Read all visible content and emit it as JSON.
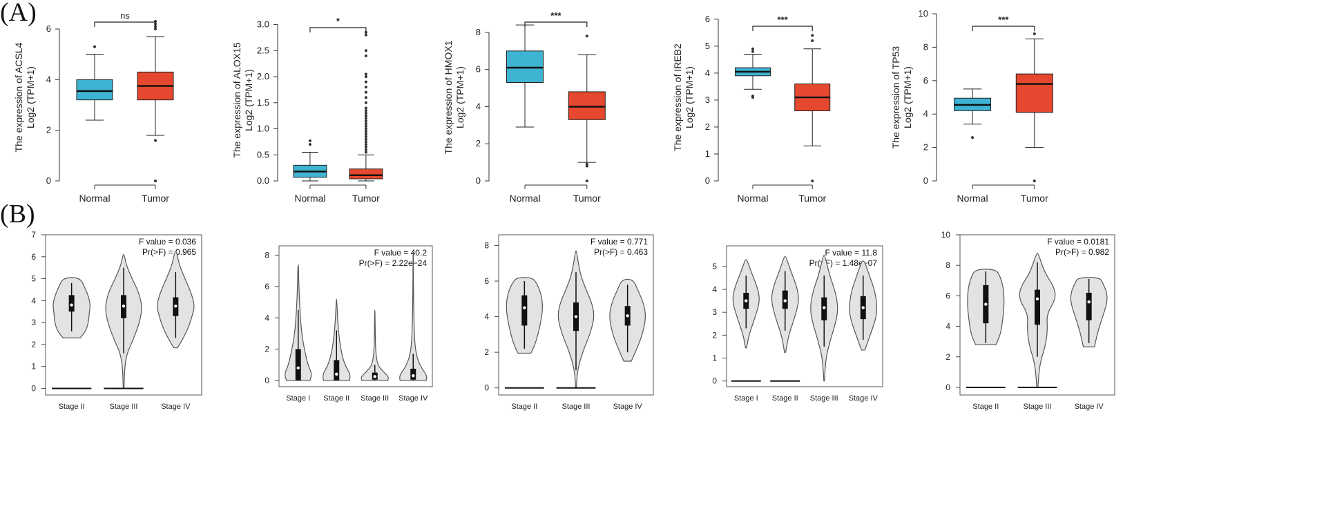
{
  "panel_labels": {
    "a": "(A)",
    "b": "(B)"
  },
  "colors": {
    "normal": "#3fb4d2",
    "tumor": "#e5482f",
    "violin": "#e3e3e3",
    "outline": "#555555",
    "bracket": "#222222"
  },
  "chart_data": [
    {
      "type": "boxplot",
      "panel": "A",
      "gene": "ACSL4",
      "ylabel_line1": "The expression of ACSL4",
      "ylabel_line2": "Log2 (TPM+1)",
      "ylim": [
        0,
        6.6
      ],
      "yticks": [
        0,
        2,
        4,
        6
      ],
      "categories": [
        "Normal",
        "Tumor"
      ],
      "boxes": [
        {
          "q1": 3.2,
          "median": 3.55,
          "q3": 4.0,
          "whisker_low": 2.4,
          "whisker_high": 5.0,
          "outliers": [
            5.3
          ]
        },
        {
          "q1": 3.2,
          "median": 3.75,
          "q3": 4.3,
          "whisker_low": 1.8,
          "whisker_high": 5.7,
          "outliers": [
            1.6,
            0.0,
            6.0,
            6.1,
            6.2,
            6.3
          ]
        }
      ],
      "significance": "ns"
    },
    {
      "type": "boxplot",
      "panel": "A",
      "gene": "ALOX15",
      "ylabel_line1": "The expression of ALOX15",
      "ylabel_line2": "Log2 (TPM+1)",
      "ylim": [
        0,
        3.1
      ],
      "yticks": [
        0.0,
        0.5,
        1.0,
        1.5,
        2.0,
        2.5,
        3.0
      ],
      "categories": [
        "Normal",
        "Tumor"
      ],
      "boxes": [
        {
          "q1": 0.07,
          "median": 0.18,
          "q3": 0.3,
          "whisker_low": 0.0,
          "whisker_high": 0.55,
          "outliers": [
            0.7,
            0.77
          ]
        },
        {
          "q1": 0.04,
          "median": 0.11,
          "q3": 0.23,
          "whisker_low": 0.0,
          "whisker_high": 0.5,
          "outliers": [
            0.55,
            0.6,
            0.65,
            0.7,
            0.75,
            0.8,
            0.85,
            0.9,
            0.95,
            1.0,
            1.05,
            1.1,
            1.15,
            1.2,
            1.25,
            1.3,
            1.35,
            1.4,
            1.5,
            1.6,
            1.7,
            1.8,
            1.9,
            2.0,
            2.05,
            2.4,
            2.5,
            2.8,
            2.85
          ]
        }
      ],
      "significance": "*"
    },
    {
      "type": "boxplot",
      "panel": "A",
      "gene": "HMOX1",
      "ylabel_line1": "The expression of HMOX1",
      "ylabel_line2": "Log2 (TPM+1)",
      "ylim": [
        0,
        9.0
      ],
      "yticks": [
        0,
        2,
        4,
        6,
        8
      ],
      "categories": [
        "Normal",
        "Tumor"
      ],
      "boxes": [
        {
          "q1": 5.3,
          "median": 6.1,
          "q3": 7.0,
          "whisker_low": 2.9,
          "whisker_high": 8.4,
          "outliers": []
        },
        {
          "q1": 3.3,
          "median": 4.0,
          "q3": 4.8,
          "whisker_low": 1.0,
          "whisker_high": 6.8,
          "outliers": [
            0.8,
            0.9,
            0.0,
            7.8
          ]
        }
      ],
      "significance": "***"
    },
    {
      "type": "boxplot",
      "panel": "A",
      "gene": "IREB2",
      "ylabel_line1": "The expression of IREB2",
      "ylabel_line2": "Log2 (TPM+1)",
      "ylim": [
        0,
        6.2
      ],
      "yticks": [
        0,
        1,
        2,
        3,
        4,
        5,
        6
      ],
      "categories": [
        "Normal",
        "Tumor"
      ],
      "boxes": [
        {
          "q1": 3.9,
          "median": 4.05,
          "q3": 4.2,
          "whisker_low": 3.4,
          "whisker_high": 4.7,
          "outliers": [
            3.1,
            3.15,
            4.8,
            4.9
          ]
        },
        {
          "q1": 2.6,
          "median": 3.1,
          "q3": 3.6,
          "whisker_low": 1.3,
          "whisker_high": 4.9,
          "outliers": [
            0.0,
            5.2,
            5.4
          ]
        }
      ],
      "significance": "***"
    },
    {
      "type": "boxplot",
      "panel": "A",
      "gene": "TP53",
      "ylabel_line1": "The expression of TP53",
      "ylabel_line2": "Log2 (TPM+1)",
      "ylim": [
        0,
        10.0
      ],
      "yticks": [
        0,
        2,
        4,
        6,
        8,
        10
      ],
      "categories": [
        "Normal",
        "Tumor"
      ],
      "boxes": [
        {
          "q1": 4.2,
          "median": 4.55,
          "q3": 4.95,
          "whisker_low": 3.4,
          "whisker_high": 5.5,
          "outliers": [
            2.6
          ]
        },
        {
          "q1": 4.1,
          "median": 5.8,
          "q3": 6.4,
          "whisker_low": 2.0,
          "whisker_high": 8.5,
          "outliers": [
            0.0,
            8.8
          ]
        }
      ],
      "significance": "***"
    },
    {
      "type": "violin",
      "panel": "B",
      "categories": [
        "Stage II",
        "Stage III",
        "Stage IV"
      ],
      "ylim": [
        -0.3,
        7.0
      ],
      "yticks": [
        0,
        1,
        2,
        3,
        4,
        5,
        6,
        7
      ],
      "f_value": "F value = 0.036",
      "pr_value": "Pr(>F) = 0.965",
      "violins": [
        {
          "min": 2.3,
          "max": 5.05,
          "q1": 3.5,
          "median": 3.8,
          "q3": 4.25,
          "wl": 2.6,
          "wh": 4.8,
          "profile": [
            [
              2.3,
              0.45
            ],
            [
              2.6,
              0.75
            ],
            [
              3.0,
              0.9
            ],
            [
              3.5,
              0.95
            ],
            [
              3.8,
              1.0
            ],
            [
              4.2,
              0.9
            ],
            [
              4.6,
              0.7
            ],
            [
              5.05,
              0.45
            ]
          ],
          "baseline": true
        },
        {
          "min": 0.0,
          "max": 6.1,
          "q1": 3.2,
          "median": 3.75,
          "q3": 4.25,
          "wl": 1.6,
          "wh": 5.5,
          "profile": [
            [
              0.0,
              0.02
            ],
            [
              1.0,
              0.06
            ],
            [
              1.6,
              0.18
            ],
            [
              2.2,
              0.5
            ],
            [
              3.0,
              0.85
            ],
            [
              3.7,
              1.0
            ],
            [
              4.4,
              0.8
            ],
            [
              5.0,
              0.45
            ],
            [
              5.6,
              0.15
            ],
            [
              6.1,
              0.03
            ]
          ],
          "baseline": true
        },
        {
          "min": 1.85,
          "max": 6.25,
          "q1": 3.3,
          "median": 3.75,
          "q3": 4.15,
          "wl": 2.3,
          "wh": 5.3,
          "profile": [
            [
              1.85,
              0.1
            ],
            [
              2.2,
              0.35
            ],
            [
              2.8,
              0.7
            ],
            [
              3.5,
              0.95
            ],
            [
              3.8,
              1.0
            ],
            [
              4.3,
              0.85
            ],
            [
              4.9,
              0.55
            ],
            [
              5.6,
              0.2
            ],
            [
              6.25,
              0.04
            ]
          ],
          "baseline": false
        }
      ]
    },
    {
      "type": "violin",
      "panel": "B",
      "categories": [
        "Stage I",
        "Stage II",
        "Stage III",
        "Stage IV"
      ],
      "ylim": [
        -0.4,
        8.6
      ],
      "yticks": [
        0,
        2,
        4,
        6,
        8
      ],
      "f_value": "F value = 40.2",
      "pr_value": "Pr(>F) = 2.22e−24",
      "violins": [
        {
          "min": 0.0,
          "max": 7.4,
          "q1": 0.0,
          "median": 0.8,
          "q3": 2.0,
          "wl": 0.0,
          "wh": 4.5,
          "profile": [
            [
              0.0,
              0.85
            ],
            [
              0.4,
              1.0
            ],
            [
              1.0,
              0.7
            ],
            [
              2.0,
              0.45
            ],
            [
              3.0,
              0.25
            ],
            [
              4.5,
              0.12
            ],
            [
              6.0,
              0.05
            ],
            [
              7.4,
              0.02
            ]
          ],
          "baseline": false
        },
        {
          "min": 0.0,
          "max": 5.2,
          "q1": 0.0,
          "median": 0.4,
          "q3": 1.3,
          "wl": 0.0,
          "wh": 3.2,
          "profile": [
            [
              0.0,
              0.95
            ],
            [
              0.4,
              1.0
            ],
            [
              1.0,
              0.6
            ],
            [
              1.8,
              0.35
            ],
            [
              2.8,
              0.18
            ],
            [
              4.0,
              0.07
            ],
            [
              5.2,
              0.02
            ]
          ],
          "baseline": false
        },
        {
          "min": 0.0,
          "max": 4.5,
          "q1": 0.05,
          "median": 0.25,
          "q3": 0.5,
          "wl": 0.0,
          "wh": 1.0,
          "profile": [
            [
              0.0,
              0.95
            ],
            [
              0.25,
              1.0
            ],
            [
              0.6,
              0.55
            ],
            [
              1.0,
              0.2
            ],
            [
              1.8,
              0.06
            ],
            [
              3.0,
              0.03
            ],
            [
              4.5,
              0.01
            ]
          ],
          "baseline": false
        },
        {
          "min": 0.0,
          "max": 8.2,
          "q1": 0.05,
          "median": 0.3,
          "q3": 0.75,
          "wl": 0.0,
          "wh": 1.7,
          "profile": [
            [
              0.0,
              0.95
            ],
            [
              0.3,
              1.0
            ],
            [
              0.8,
              0.6
            ],
            [
              1.5,
              0.25
            ],
            [
              2.5,
              0.1
            ],
            [
              4.0,
              0.05
            ],
            [
              6.0,
              0.02
            ],
            [
              8.2,
              0.01
            ]
          ],
          "baseline": false
        }
      ]
    },
    {
      "type": "violin",
      "panel": "B",
      "categories": [
        "Stage II",
        "Stage III",
        "Stage IV"
      ],
      "ylim": [
        -0.4,
        8.6
      ],
      "yticks": [
        0,
        2,
        4,
        6,
        8
      ],
      "f_value": "F value = 0.771",
      "pr_value": "Pr(>F) = 0.463",
      "violins": [
        {
          "min": 1.95,
          "max": 6.2,
          "q1": 3.5,
          "median": 4.5,
          "q3": 5.2,
          "wl": 2.2,
          "wh": 6.0,
          "profile": [
            [
              1.95,
              0.35
            ],
            [
              2.5,
              0.6
            ],
            [
              3.5,
              0.85
            ],
            [
              4.5,
              1.0
            ],
            [
              5.3,
              0.9
            ],
            [
              5.9,
              0.65
            ],
            [
              6.2,
              0.4
            ]
          ],
          "baseline": true
        },
        {
          "min": 0.0,
          "max": 7.7,
          "q1": 3.2,
          "median": 4.0,
          "q3": 4.8,
          "wl": 1.0,
          "wh": 6.5,
          "profile": [
            [
              0.0,
              0.02
            ],
            [
              1.0,
              0.08
            ],
            [
              2.0,
              0.35
            ],
            [
              3.0,
              0.75
            ],
            [
              4.0,
              1.0
            ],
            [
              4.8,
              0.85
            ],
            [
              5.6,
              0.5
            ],
            [
              6.5,
              0.2
            ],
            [
              7.7,
              0.03
            ]
          ],
          "baseline": true
        },
        {
          "min": 1.5,
          "max": 6.1,
          "q1": 3.5,
          "median": 4.05,
          "q3": 4.6,
          "wl": 2.0,
          "wh": 5.8,
          "profile": [
            [
              1.5,
              0.2
            ],
            [
              2.2,
              0.5
            ],
            [
              3.0,
              0.8
            ],
            [
              4.0,
              1.0
            ],
            [
              4.8,
              0.85
            ],
            [
              5.5,
              0.55
            ],
            [
              6.1,
              0.3
            ]
          ],
          "baseline": false
        }
      ]
    },
    {
      "type": "violin",
      "panel": "B",
      "categories": [
        "Stage I",
        "Stage II",
        "Stage III",
        "Stage IV"
      ],
      "ylim": [
        -0.25,
        5.9
      ],
      "yticks": [
        0,
        1,
        2,
        3,
        4,
        5
      ],
      "f_value": "F value = 11.8",
      "pr_value": "Pr(>F) = 1.48e−07",
      "violins": [
        {
          "min": 1.45,
          "max": 5.3,
          "q1": 3.15,
          "median": 3.5,
          "q3": 3.85,
          "wl": 2.3,
          "wh": 4.6,
          "profile": [
            [
              1.45,
              0.04
            ],
            [
              2.0,
              0.2
            ],
            [
              2.7,
              0.6
            ],
            [
              3.5,
              1.0
            ],
            [
              4.1,
              0.8
            ],
            [
              4.7,
              0.4
            ],
            [
              5.3,
              0.06
            ]
          ],
          "baseline": true
        },
        {
          "min": 1.25,
          "max": 5.45,
          "q1": 3.15,
          "median": 3.5,
          "q3": 3.95,
          "wl": 2.2,
          "wh": 4.8,
          "profile": [
            [
              1.25,
              0.04
            ],
            [
              2.0,
              0.25
            ],
            [
              2.7,
              0.65
            ],
            [
              3.5,
              1.0
            ],
            [
              4.1,
              0.85
            ],
            [
              4.8,
              0.4
            ],
            [
              5.45,
              0.05
            ]
          ],
          "baseline": true
        },
        {
          "min": 0.0,
          "max": 5.5,
          "q1": 2.65,
          "median": 3.2,
          "q3": 3.65,
          "wl": 1.5,
          "wh": 4.6,
          "profile": [
            [
              0.0,
              0.02
            ],
            [
              1.0,
              0.12
            ],
            [
              1.8,
              0.45
            ],
            [
              2.6,
              0.85
            ],
            [
              3.2,
              1.0
            ],
            [
              3.9,
              0.8
            ],
            [
              4.6,
              0.4
            ],
            [
              5.5,
              0.04
            ]
          ],
          "baseline": false
        },
        {
          "min": 1.35,
          "max": 5.25,
          "q1": 2.7,
          "median": 3.2,
          "q3": 3.7,
          "wl": 1.8,
          "wh": 4.6,
          "profile": [
            [
              1.35,
              0.12
            ],
            [
              2.0,
              0.5
            ],
            [
              2.7,
              0.9
            ],
            [
              3.2,
              1.0
            ],
            [
              3.9,
              0.85
            ],
            [
              4.6,
              0.45
            ],
            [
              5.25,
              0.08
            ]
          ],
          "baseline": false
        }
      ]
    },
    {
      "type": "violin",
      "panel": "B",
      "categories": [
        "Stage II",
        "Stage III",
        "Stage IV"
      ],
      "ylim": [
        -0.5,
        10.0
      ],
      "yticks": [
        0,
        2,
        4,
        6,
        8,
        10
      ],
      "f_value": "F value = 0.0181",
      "pr_value": "Pr(>F) = 0.982",
      "violins": [
        {
          "min": 2.8,
          "max": 7.75,
          "q1": 4.2,
          "median": 5.45,
          "q3": 6.7,
          "wl": 2.9,
          "wh": 7.6,
          "profile": [
            [
              2.8,
              0.55
            ],
            [
              3.5,
              0.8
            ],
            [
              4.5,
              0.92
            ],
            [
              5.5,
              1.0
            ],
            [
              6.5,
              0.95
            ],
            [
              7.2,
              0.8
            ],
            [
              7.75,
              0.55
            ]
          ],
          "baseline": true
        },
        {
          "min": 0.0,
          "max": 8.8,
          "q1": 4.1,
          "median": 5.8,
          "q3": 6.4,
          "wl": 2.0,
          "wh": 8.2,
          "profile": [
            [
              0.0,
              0.03
            ],
            [
              1.5,
              0.12
            ],
            [
              2.8,
              0.45
            ],
            [
              3.8,
              0.55
            ],
            [
              4.8,
              0.5
            ],
            [
              5.8,
              1.0
            ],
            [
              6.6,
              0.9
            ],
            [
              7.5,
              0.4
            ],
            [
              8.8,
              0.04
            ]
          ],
          "baseline": true
        },
        {
          "min": 2.65,
          "max": 7.2,
          "q1": 4.4,
          "median": 5.6,
          "q3": 6.2,
          "wl": 2.9,
          "wh": 7.1,
          "profile": [
            [
              2.65,
              0.3
            ],
            [
              3.5,
              0.45
            ],
            [
              4.5,
              0.7
            ],
            [
              5.6,
              1.0
            ],
            [
              6.3,
              0.95
            ],
            [
              6.8,
              0.75
            ],
            [
              7.2,
              0.6
            ]
          ],
          "baseline": false
        }
      ]
    }
  ]
}
